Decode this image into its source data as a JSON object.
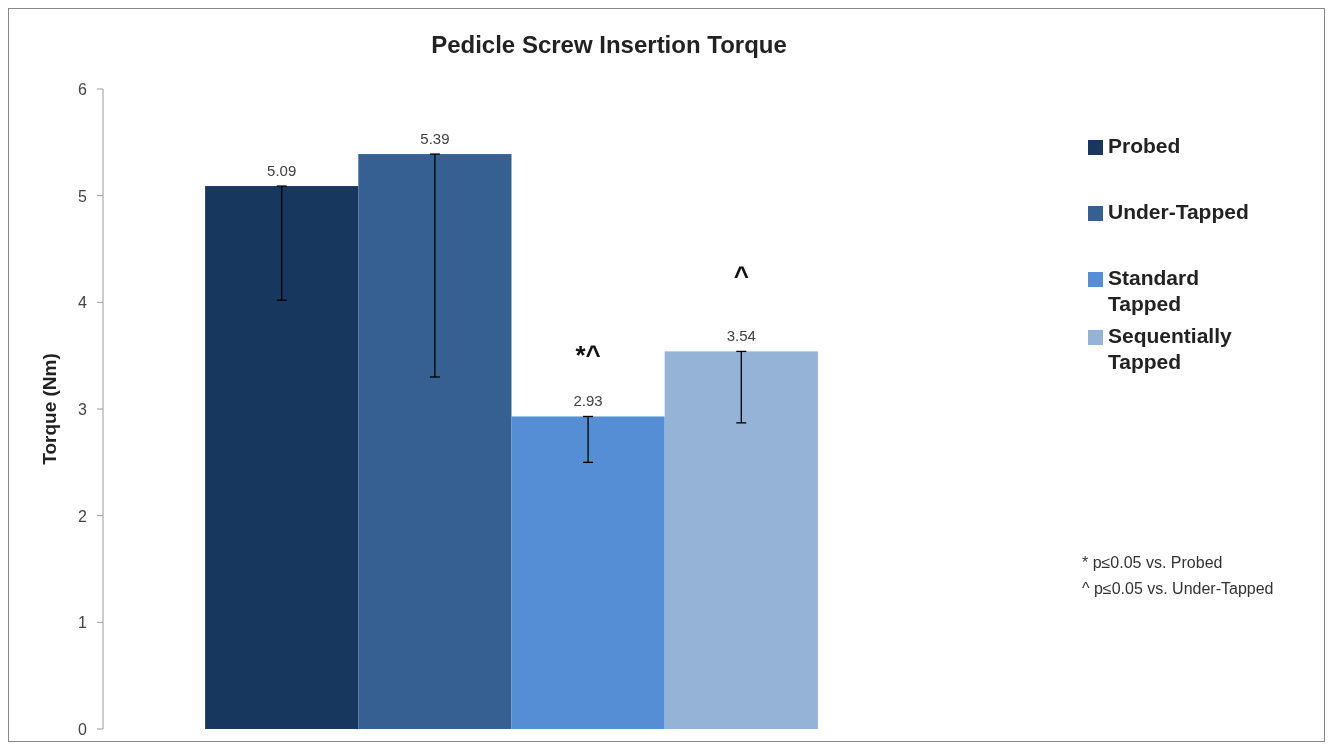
{
  "chart_data": {
    "type": "bar",
    "title": "Pedicle Screw Insertion Torque",
    "ylabel": "Torque (Nm)",
    "categories": [
      null
    ],
    "series": [
      {
        "name": "Probed",
        "color": "#17375e",
        "values": [
          5.09
        ],
        "errors": [
          [
            4.02,
            5.09
          ]
        ]
      },
      {
        "name": "Under-Tapped",
        "color": "#366092",
        "values": [
          5.39
        ],
        "errors": [
          [
            3.3,
            5.39
          ]
        ]
      },
      {
        "name": "Standard Tapped",
        "color": "#558ed5",
        "values": [
          2.93
        ],
        "errors": [
          [
            2.5,
            2.93
          ]
        ]
      },
      {
        "name": "Sequentially Tapped",
        "color": "#95b3d7",
        "values": [
          3.54
        ],
        "errors": [
          [
            2.87,
            3.54
          ]
        ]
      }
    ],
    "ylim": [
      0,
      6
    ],
    "yticks": [
      0,
      1,
      2,
      3,
      4,
      5,
      6
    ],
    "grid": false,
    "legend": "right",
    "data_labels": true,
    "annotations": [
      "*^",
      "^",
      "* p≤0.05 vs. Probed",
      "^ p≤0.05 vs. Under-Tapped"
    ]
  }
}
